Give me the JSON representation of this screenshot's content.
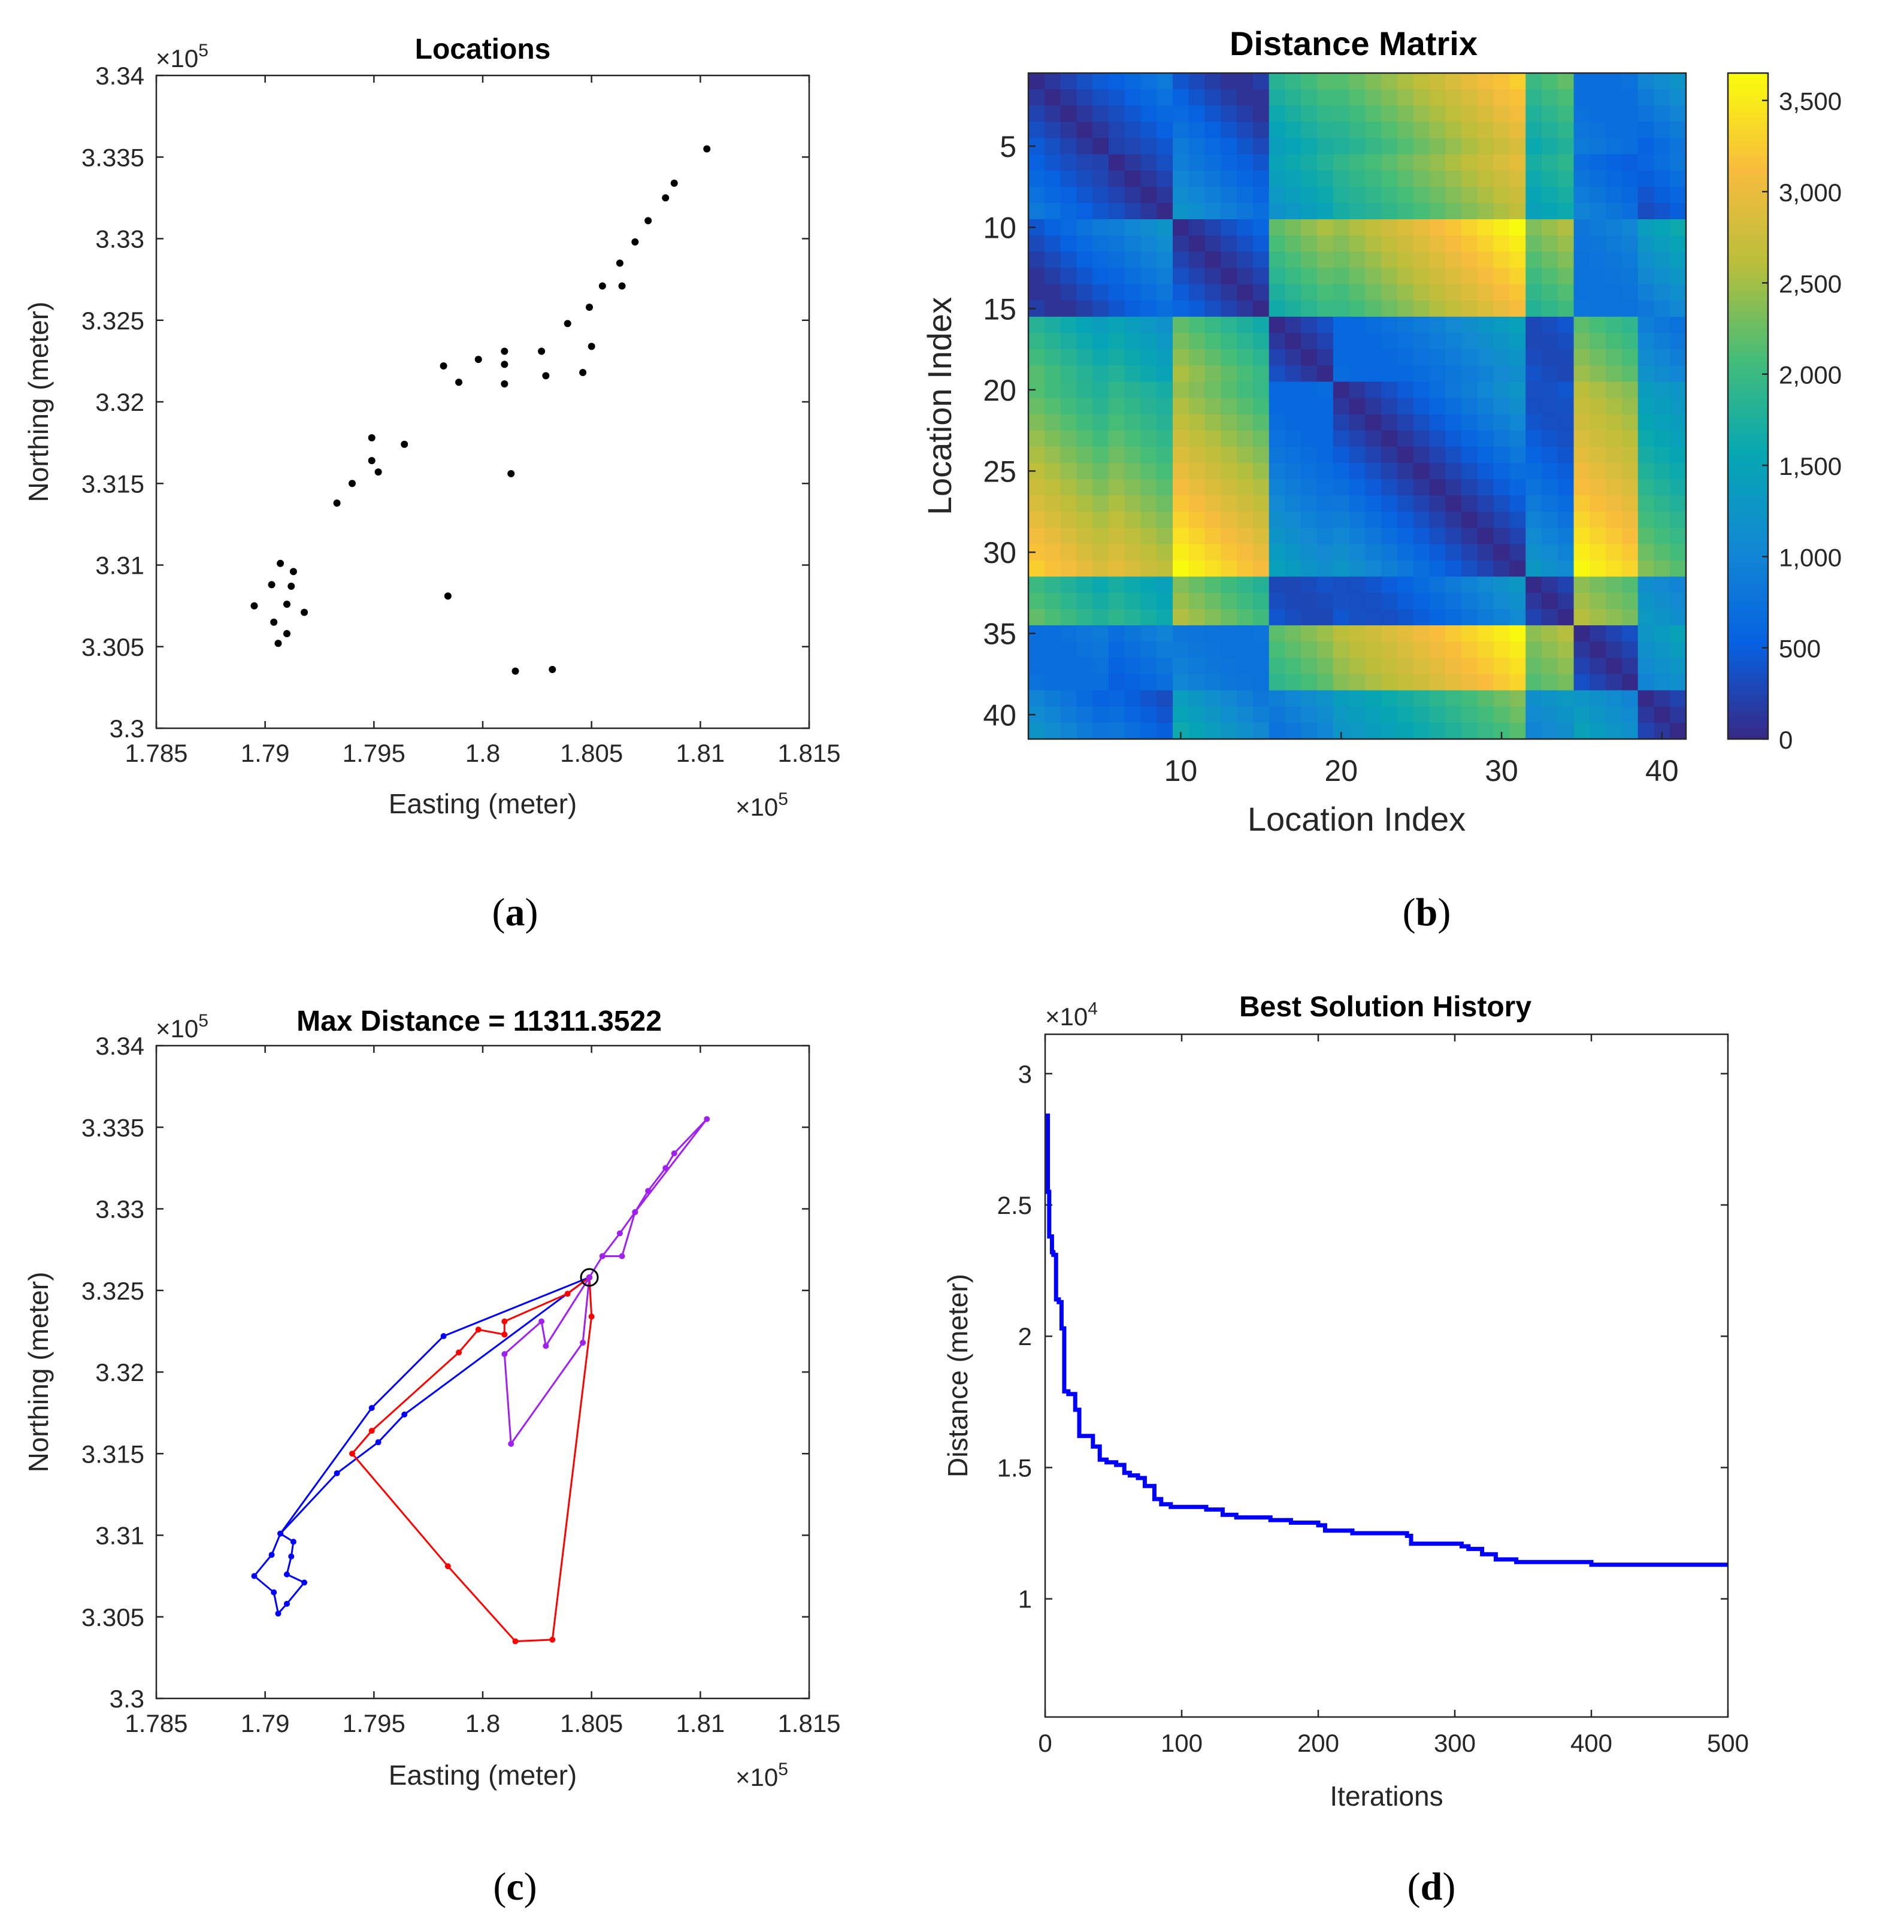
{
  "chart_data": [
    {
      "type": "scatter",
      "title": "Locations",
      "caption_open": "(",
      "caption_letter": "a",
      "caption_close": ")",
      "xlabel": "Easting (meter)",
      "ylabel": "Northing (meter)",
      "x_exponent": "×10",
      "x_exponent_power": "5",
      "y_exponent": "×10",
      "y_exponent_power": "5",
      "xlim": [
        1.785,
        1.815
      ],
      "ylim": [
        3.3,
        3.34
      ],
      "xticks": [
        1.785,
        1.79,
        1.795,
        1.8,
        1.805,
        1.81,
        1.815
      ],
      "xtick_labels": [
        "1.785",
        "1.79",
        "1.795",
        "1.8",
        "1.805",
        "1.81",
        "1.815"
      ],
      "yticks": [
        3.3,
        3.305,
        3.31,
        3.315,
        3.32,
        3.325,
        3.33,
        3.335,
        3.34
      ],
      "ytick_labels": [
        "3.3",
        "3.305",
        "3.31",
        "3.315",
        "3.32",
        "3.325",
        "3.33",
        "3.335",
        "3.34"
      ],
      "marker_color": "#000000",
      "points": [
        [
          1.8103,
          3.3355
        ],
        [
          1.8088,
          3.3334
        ],
        [
          1.8084,
          3.3325
        ],
        [
          1.8076,
          3.3311
        ],
        [
          1.807,
          3.3298
        ],
        [
          1.8063,
          3.3285
        ],
        [
          1.8055,
          3.3271
        ],
        [
          1.8064,
          3.3271
        ],
        [
          1.8049,
          3.3258
        ],
        [
          1.8039,
          3.3248
        ],
        [
          1.805,
          3.3234
        ],
        [
          1.8027,
          3.3231
        ],
        [
          1.8029,
          3.3216
        ],
        [
          1.8046,
          3.3218
        ],
        [
          1.801,
          3.3231
        ],
        [
          1.801,
          3.3223
        ],
        [
          1.801,
          3.3211
        ],
        [
          1.7998,
          3.3226
        ],
        [
          1.7982,
          3.3222
        ],
        [
          1.7989,
          3.3212
        ],
        [
          1.7964,
          3.3174
        ],
        [
          1.7949,
          3.3178
        ],
        [
          1.7949,
          3.3164
        ],
        [
          1.7952,
          3.3157
        ],
        [
          1.794,
          3.315
        ],
        [
          1.7933,
          3.3138
        ],
        [
          1.8013,
          3.3156
        ],
        [
          1.7984,
          3.3081
        ],
        [
          1.8015,
          3.3035
        ],
        [
          1.8032,
          3.3036
        ],
        [
          1.7907,
          3.3101
        ],
        [
          1.7913,
          3.3096
        ],
        [
          1.7903,
          3.3088
        ],
        [
          1.7912,
          3.3087
        ],
        [
          1.7895,
          3.3075
        ],
        [
          1.791,
          3.3076
        ],
        [
          1.7918,
          3.3071
        ],
        [
          1.7904,
          3.3065
        ],
        [
          1.791,
          3.3058
        ],
        [
          1.7906,
          3.3052
        ]
      ]
    },
    {
      "type": "heatmap",
      "title": "Distance Matrix",
      "caption_open": "(",
      "caption_letter": "b",
      "caption_close": ")",
      "xlabel": "Location Index",
      "ylabel": "Location Index",
      "size": 41,
      "xticks": [
        10,
        20,
        30,
        40
      ],
      "xtick_labels": [
        "10",
        "20",
        "30",
        "40"
      ],
      "yticks": [
        5,
        10,
        15,
        20,
        25,
        30,
        35,
        40
      ],
      "ytick_labels": [
        "5",
        "10",
        "15",
        "20",
        "25",
        "30",
        "35",
        "40"
      ],
      "colorbar_ticks": [
        0,
        500,
        1000,
        1500,
        2000,
        2500,
        3000,
        3500
      ],
      "colorbar_labels": [
        "0",
        "500",
        "1,000",
        "1,500",
        "2,000",
        "2,500",
        "3,000",
        "3,500"
      ],
      "clim": [
        0,
        3650
      ],
      "colormap": "parula"
    },
    {
      "type": "line",
      "title": "Max Distance = 11311.3522",
      "caption_open": "(",
      "caption_letter": "c",
      "caption_close": ")",
      "xlabel": "Easting (meter)",
      "ylabel": "Northing (meter)",
      "x_exponent": "×10",
      "x_exponent_power": "5",
      "y_exponent": "×10",
      "y_exponent_power": "5",
      "xlim": [
        1.785,
        1.815
      ],
      "ylim": [
        3.3,
        3.34
      ],
      "xticks": [
        1.785,
        1.79,
        1.795,
        1.8,
        1.805,
        1.81,
        1.815
      ],
      "xtick_labels": [
        "1.785",
        "1.79",
        "1.795",
        "1.8",
        "1.805",
        "1.81",
        "1.815"
      ],
      "yticks": [
        3.3,
        3.305,
        3.31,
        3.315,
        3.32,
        3.325,
        3.33,
        3.335,
        3.34
      ],
      "ytick_labels": [
        "3.3",
        "3.305",
        "3.31",
        "3.315",
        "3.32",
        "3.325",
        "3.33",
        "3.335",
        "3.34"
      ],
      "depot": [
        1.8049,
        3.3258
      ],
      "series": [
        {
          "name": "blue route",
          "color": "#0000ff",
          "points": [
            [
              1.8049,
              3.3258
            ],
            [
              1.7982,
              3.3222
            ],
            [
              1.7949,
              3.3178
            ],
            [
              1.7907,
              3.3101
            ],
            [
              1.7913,
              3.3096
            ],
            [
              1.7912,
              3.3087
            ],
            [
              1.791,
              3.3076
            ],
            [
              1.7918,
              3.3071
            ],
            [
              1.791,
              3.3058
            ],
            [
              1.7906,
              3.3052
            ],
            [
              1.7904,
              3.3065
            ],
            [
              1.7895,
              3.3075
            ],
            [
              1.7903,
              3.3088
            ],
            [
              1.7907,
              3.3101
            ],
            [
              1.7933,
              3.3138
            ],
            [
              1.7952,
              3.3157
            ],
            [
              1.7964,
              3.3174
            ],
            [
              1.8049,
              3.3258
            ]
          ]
        },
        {
          "name": "red route",
          "color": "#ff0000",
          "points": [
            [
              1.8049,
              3.3258
            ],
            [
              1.8039,
              3.3248
            ],
            [
              1.801,
              3.3231
            ],
            [
              1.801,
              3.3223
            ],
            [
              1.7998,
              3.3226
            ],
            [
              1.7989,
              3.3212
            ],
            [
              1.7949,
              3.3164
            ],
            [
              1.794,
              3.315
            ],
            [
              1.7984,
              3.3081
            ],
            [
              1.8015,
              3.3035
            ],
            [
              1.8032,
              3.3036
            ],
            [
              1.805,
              3.3234
            ],
            [
              1.8049,
              3.3258
            ]
          ]
        },
        {
          "name": "purple route",
          "color": "#a020f0",
          "points": [
            [
              1.8049,
              3.3258
            ],
            [
              1.8055,
              3.3271
            ],
            [
              1.8063,
              3.3285
            ],
            [
              1.807,
              3.3298
            ],
            [
              1.8076,
              3.3311
            ],
            [
              1.8084,
              3.3325
            ],
            [
              1.8088,
              3.3334
            ],
            [
              1.8103,
              3.3355
            ],
            [
              1.807,
              3.3298
            ],
            [
              1.8064,
              3.3271
            ],
            [
              1.8055,
              3.3271
            ],
            [
              1.8049,
              3.3258
            ],
            [
              1.8046,
              3.3218
            ],
            [
              1.8013,
              3.3156
            ],
            [
              1.801,
              3.3211
            ],
            [
              1.8027,
              3.3231
            ],
            [
              1.8029,
              3.3216
            ],
            [
              1.8049,
              3.3258
            ]
          ]
        }
      ]
    },
    {
      "type": "line",
      "title": "Best Solution History",
      "caption_open": "(",
      "caption_letter": "d",
      "caption_close": ")",
      "xlabel": "Iterations",
      "ylabel": "Distance (meter)",
      "y_exponent": "×10",
      "y_exponent_power": "4",
      "xlim": [
        0,
        500
      ],
      "ylim": [
        0.55,
        3.15
      ],
      "xticks": [
        0,
        100,
        200,
        300,
        400,
        500
      ],
      "xtick_labels": [
        "0",
        "100",
        "200",
        "300",
        "400",
        "500"
      ],
      "yticks": [
        1,
        1.5,
        2,
        2.5,
        3
      ],
      "ytick_labels": [
        "1",
        "1.5",
        "2",
        "2.5",
        "3"
      ],
      "color": "#0000ff",
      "x": [
        0,
        2,
        3,
        5,
        6,
        8,
        10,
        12,
        14,
        17,
        22,
        25,
        28,
        35,
        40,
        45,
        52,
        58,
        62,
        68,
        73,
        80,
        85,
        92,
        100,
        118,
        130,
        140,
        150,
        165,
        180,
        200,
        205,
        225,
        245,
        265,
        268,
        290,
        305,
        310,
        320,
        330,
        345,
        360,
        380,
        400,
        430,
        500
      ],
      "y": [
        2.84,
        2.55,
        2.38,
        2.32,
        2.31,
        2.14,
        2.13,
        2.03,
        1.79,
        1.78,
        1.72,
        1.62,
        1.62,
        1.58,
        1.53,
        1.52,
        1.51,
        1.48,
        1.47,
        1.46,
        1.43,
        1.38,
        1.36,
        1.35,
        1.35,
        1.34,
        1.32,
        1.31,
        1.31,
        1.3,
        1.29,
        1.28,
        1.26,
        1.25,
        1.25,
        1.24,
        1.21,
        1.21,
        1.2,
        1.19,
        1.17,
        1.15,
        1.14,
        1.14,
        1.14,
        1.13,
        1.13,
        1.13
      ]
    }
  ]
}
